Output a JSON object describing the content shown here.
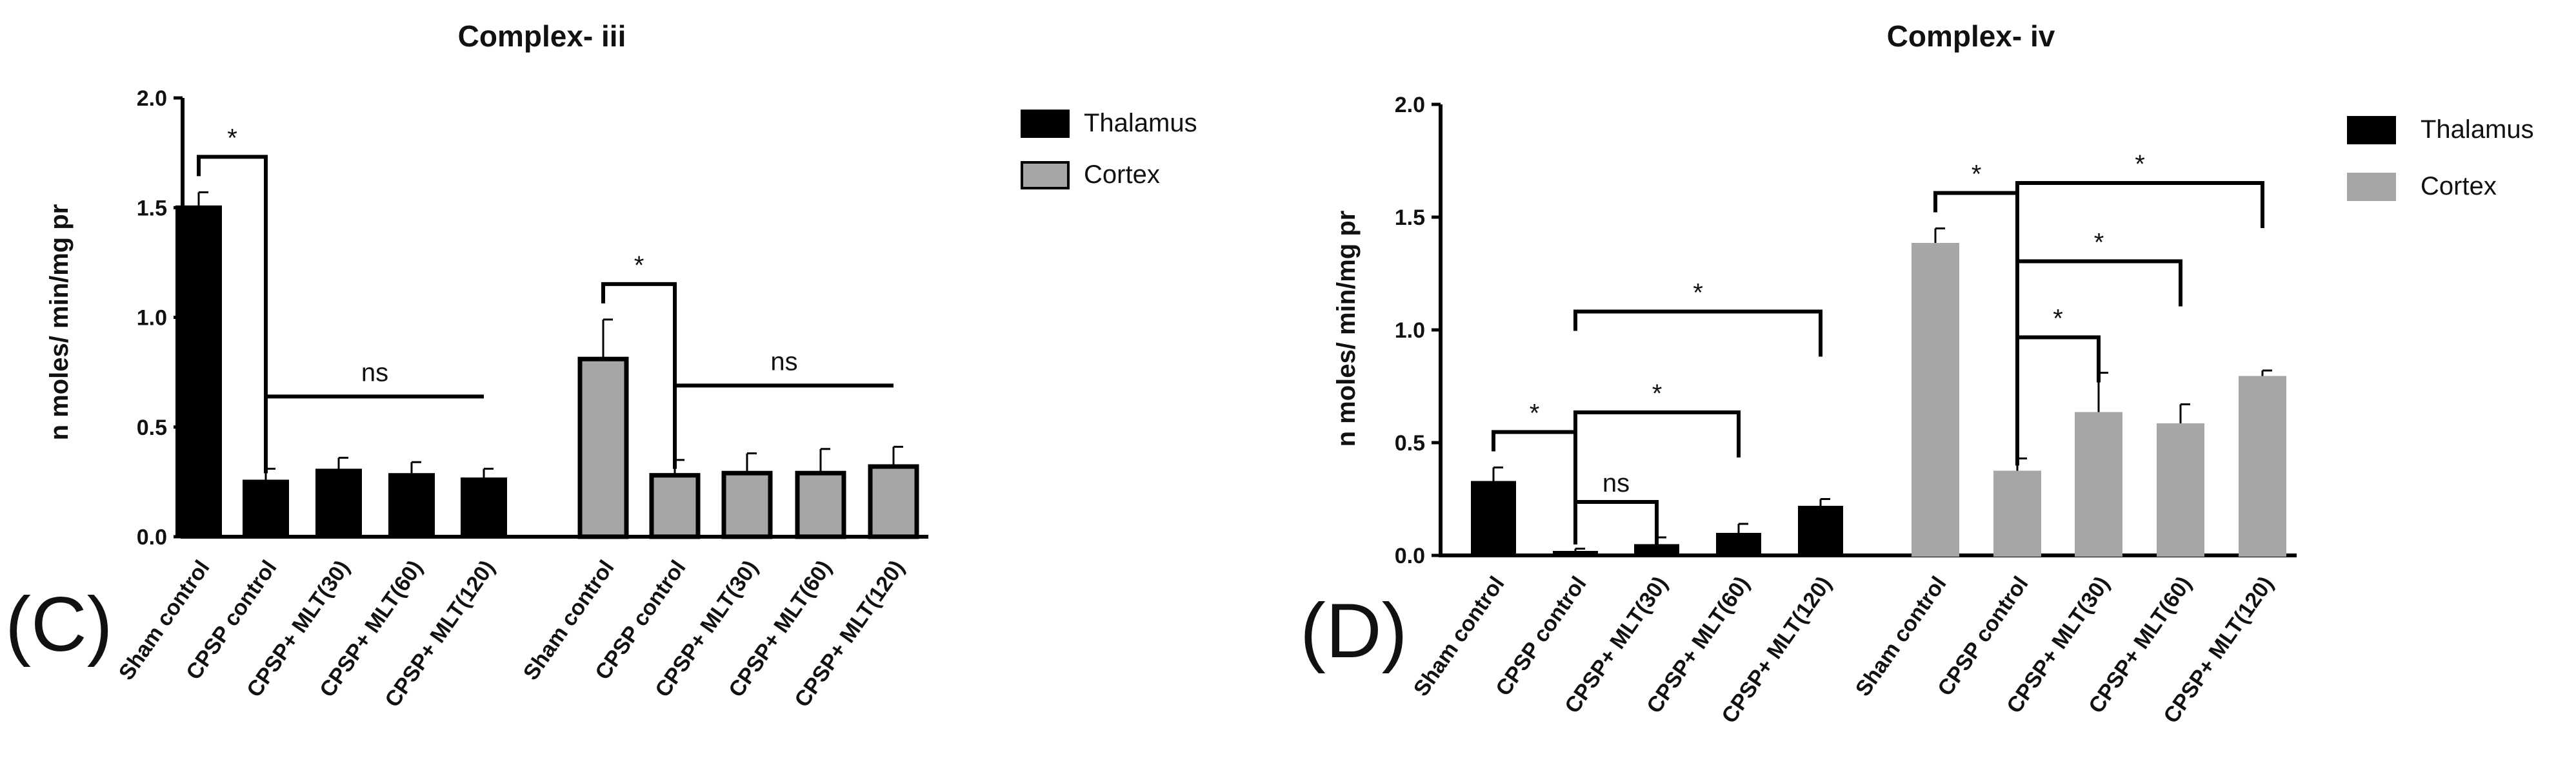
{
  "chart_data": [
    {
      "type": "bar",
      "panel_label": "(C)",
      "title": "Complex- iii",
      "xlabel": "",
      "ylabel": "n moles/ min/mg pr",
      "ylim": [
        0,
        2.0
      ],
      "yticks": [
        "0.0",
        "0.5",
        "1.0",
        "1.5",
        "2.0"
      ],
      "categories": [
        "Sham control",
        "CPSP control",
        "CPSP+ MLT(30)",
        "CPSP+ MLT(60)",
        "CPSP+ MLT(120)"
      ],
      "legend": [
        "Thalamus",
        "Cortex"
      ],
      "colors": {
        "Thalamus": "#000000",
        "Cortex": "#a6a6a6",
        "Cortex_edge": "#000000"
      },
      "series": [
        {
          "name": "Thalamus",
          "values": [
            1.51,
            0.26,
            0.31,
            0.29,
            0.27
          ],
          "errors": [
            0.06,
            0.05,
            0.05,
            0.05,
            0.04
          ]
        },
        {
          "name": "Cortex",
          "values": [
            0.81,
            0.28,
            0.29,
            0.29,
            0.32
          ],
          "errors": [
            0.18,
            0.07,
            0.09,
            0.11,
            0.09
          ]
        }
      ],
      "annotations": [
        {
          "series": "Thalamus",
          "from": 0,
          "to": [
            1
          ],
          "label": "*"
        },
        {
          "series": "Thalamus",
          "from": 1,
          "to": [
            4
          ],
          "label": "ns",
          "span": true
        },
        {
          "series": "Cortex",
          "from": 0,
          "to": [
            1
          ],
          "label": "*"
        },
        {
          "series": "Cortex",
          "from": 1,
          "to": [
            4
          ],
          "label": "ns",
          "span": true
        }
      ]
    },
    {
      "type": "bar",
      "panel_label": "(D)",
      "title": "Complex- iv",
      "xlabel": "",
      "ylabel": "n moles/ min/mg pr",
      "ylim": [
        0,
        2.0
      ],
      "yticks": [
        "0.0",
        "0.5",
        "1.0",
        "1.5",
        "2.0"
      ],
      "categories": [
        "Sham control",
        "CPSP control",
        "CPSP+ MLT(30)",
        "CPSP+ MLT(60)",
        "CPSP+ MLT(120)"
      ],
      "legend": [
        "Thalamus",
        "Cortex"
      ],
      "colors": {
        "Thalamus": "#000000",
        "Cortex": "#a6a6a6",
        "Cortex_edge": "#a6a6a6"
      },
      "series": [
        {
          "name": "Thalamus",
          "values": [
            0.33,
            0.02,
            0.05,
            0.1,
            0.22
          ],
          "errors": [
            0.06,
            0.01,
            0.03,
            0.04,
            0.03
          ]
        },
        {
          "name": "Cortex",
          "values": [
            1.38,
            0.37,
            0.63,
            0.58,
            0.79
          ],
          "errors": [
            0.07,
            0.06,
            0.18,
            0.09,
            0.03
          ]
        }
      ],
      "annotations": [
        {
          "series": "Thalamus",
          "from": 0,
          "to": [
            1
          ],
          "label": "*"
        },
        {
          "series": "Thalamus",
          "from": 1,
          "to": [
            2
          ],
          "label": "ns"
        },
        {
          "series": "Thalamus",
          "from": 1,
          "to": [
            3
          ],
          "label": "*"
        },
        {
          "series": "Thalamus",
          "from": 1,
          "to": [
            4
          ],
          "label": "*"
        },
        {
          "series": "Cortex",
          "from": 0,
          "to": [
            1
          ],
          "label": "*"
        },
        {
          "series": "Cortex",
          "from": 1,
          "to": [
            2
          ],
          "label": "*"
        },
        {
          "series": "Cortex",
          "from": 1,
          "to": [
            3
          ],
          "label": "*"
        },
        {
          "series": "Cortex",
          "from": 1,
          "to": [
            4
          ],
          "label": "*"
        }
      ]
    }
  ]
}
